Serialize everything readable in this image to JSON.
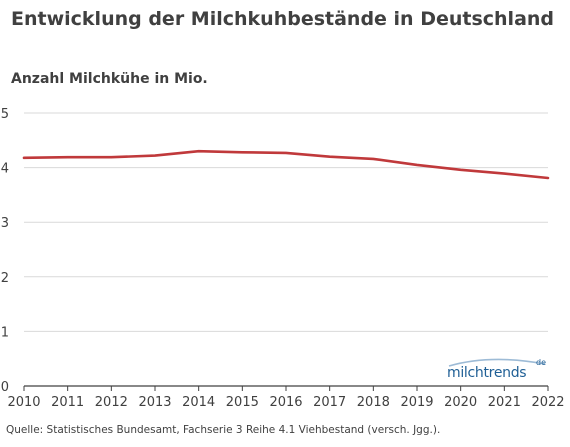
{
  "chart_data": {
    "type": "line",
    "title": "Entwicklung der Milchkuhbestände in Deutschland",
    "ylabel": "Anzahl Milchkühe in Mio.",
    "xlabel": "",
    "x": [
      "2010",
      "2011",
      "2012",
      "2013",
      "2014",
      "2015",
      "2016",
      "2017",
      "2018",
      "2019",
      "2020",
      "2021",
      "2022"
    ],
    "series": [
      {
        "values": [
          4.18,
          4.19,
          4.19,
          4.22,
          4.3,
          4.28,
          4.27,
          4.2,
          4.16,
          4.05,
          3.96,
          3.89,
          3.81
        ]
      }
    ],
    "ylim": [
      0,
      5
    ],
    "yticks": [
      "0",
      "1",
      "2",
      "3",
      "4",
      "5"
    ],
    "grid": true,
    "line_color": "#c0393b",
    "grid_color": "#d9d9d9"
  },
  "source": "Quelle: Statistisches Bundesamt, Fachserie 3 Reihe 4.1 Viehbestand (versch. Jgg.).",
  "logo": {
    "text": "milchtrends",
    "suffix": "de"
  }
}
